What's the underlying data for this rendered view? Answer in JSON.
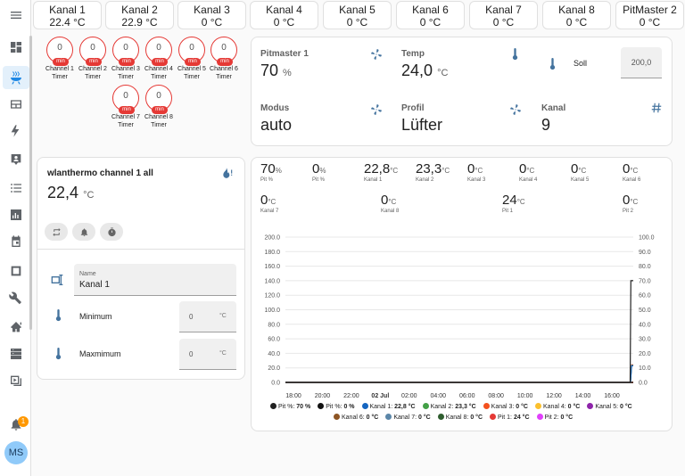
{
  "sidebar": {
    "items": [
      "menu-icon",
      "overview-icon",
      "grill-icon",
      "energy-icon",
      "lightning-icon",
      "map-icon",
      "list-icon",
      "history-icon",
      "calendar-icon",
      "media-icon",
      "developer-tools-icon",
      "hacs-icon",
      "server-icon",
      "play-icon"
    ],
    "notifications_badge": "1",
    "avatar_initials": "MS"
  },
  "top_cards": [
    {
      "name": "Kanal 1",
      "value": "22.4 °C"
    },
    {
      "name": "Kanal 2",
      "value": "22.9 °C"
    },
    {
      "name": "Kanal 3",
      "value": "0 °C"
    },
    {
      "name": "Kanal 4",
      "value": "0 °C"
    },
    {
      "name": "Kanal 5",
      "value": "0 °C"
    },
    {
      "name": "Kanal 6",
      "value": "0 °C"
    },
    {
      "name": "Kanal 7",
      "value": "0 °C"
    },
    {
      "name": "Kanal 8",
      "value": "0 °C"
    },
    {
      "name": "PitMaster 2",
      "value": "0 °C"
    }
  ],
  "timers": [
    {
      "value": "0",
      "unit": "min",
      "label1": "Channel 1",
      "label2": "Timer"
    },
    {
      "value": "0",
      "unit": "min",
      "label1": "Channel 2",
      "label2": "Timer"
    },
    {
      "value": "0",
      "unit": "min",
      "label1": "Channel 3",
      "label2": "Timer"
    },
    {
      "value": "0",
      "unit": "min",
      "label1": "Channel 4",
      "label2": "Timer"
    },
    {
      "value": "0",
      "unit": "min",
      "label1": "Channel 5",
      "label2": "Timer"
    },
    {
      "value": "0",
      "unit": "min",
      "label1": "Channel 6",
      "label2": "Timer"
    },
    {
      "value": "0",
      "unit": "min",
      "label1": "Channel 7",
      "label2": "Timer"
    },
    {
      "value": "0",
      "unit": "min",
      "label1": "Channel 8",
      "label2": "Timer"
    }
  ],
  "pitmaster": {
    "pitmaster_label": "Pitmaster 1",
    "pitmaster_value": "70",
    "pitmaster_unit": "%",
    "temp_label": "Temp",
    "temp_value": "24,0",
    "temp_unit": "°C",
    "soll_label": "Soll",
    "soll_value": "200,0",
    "modus_label": "Modus",
    "modus_value": "auto",
    "profil_label": "Profil",
    "profil_value": "Lüfter",
    "kanal_label": "Kanal",
    "kanal_value": "9"
  },
  "channel_card": {
    "title": "wlanthermo channel 1 all",
    "value": "22,4",
    "unit": "°C",
    "name_label": "Name",
    "name_value": "Kanal 1",
    "min_label": "Minimum",
    "min_value": "0",
    "min_unit": "°C",
    "max_label": "Maxmimum",
    "max_value": "0",
    "max_unit": "°C"
  },
  "stats": [
    {
      "value": "70",
      "unit": "%",
      "name": "Pit %"
    },
    {
      "value": "0",
      "unit": "%",
      "name": "Pit %"
    },
    {
      "value": "22,8",
      "unit": "°C",
      "name": "Kanal 1"
    },
    {
      "value": "23,3",
      "unit": "°C",
      "name": "Kanal 2"
    },
    {
      "value": "0",
      "unit": "°C",
      "name": "Kanal 3"
    },
    {
      "value": "0",
      "unit": "°C",
      "name": "Kanal 4"
    },
    {
      "value": "0",
      "unit": "°C",
      "name": "Kanal 5"
    },
    {
      "value": "0",
      "unit": "°C",
      "name": "Kanal 6"
    },
    {
      "value": "0",
      "unit": "°C",
      "name": "Kanal 7"
    },
    {
      "value": "0",
      "unit": "°C",
      "name": "Kanal 8"
    },
    {
      "value": "24",
      "unit": "°C",
      "name": "Pit 1"
    },
    {
      "value": "0",
      "unit": "°C",
      "name": "Pit 2"
    }
  ],
  "chart_data": {
    "type": "line",
    "x_ticks": [
      "18:00",
      "20:00",
      "22:00",
      "02 Jul",
      "02:00",
      "04:00",
      "06:00",
      "08:00",
      "10:00",
      "12:00",
      "14:00",
      "16:00"
    ],
    "x_range": [
      "17:00",
      "17:25"
    ],
    "y_left_ticks": [
      "200.0",
      "180.0",
      "160.0",
      "140.0",
      "120.0",
      "100.0",
      "80.0",
      "60.0",
      "40.0",
      "20.0",
      "0.0"
    ],
    "y_right_ticks": [
      "100.0",
      "90.0",
      "80.0",
      "70.0",
      "60.0",
      "50.0",
      "40.0",
      "30.0",
      "20.0",
      "10.0",
      "0.0"
    ],
    "ylim_left": [
      0,
      200
    ],
    "ylim_right": [
      0,
      100
    ],
    "grid": true,
    "series": [
      {
        "name": "Pit %",
        "value": "70 %",
        "color": "#212121",
        "axis": "right",
        "points": [
          [
            0,
            0
          ],
          [
            0.991,
            0
          ],
          [
            0.993,
            70
          ],
          [
            1,
            70
          ]
        ]
      },
      {
        "name": "Pit %",
        "value": "0 %",
        "color": "#111111",
        "axis": "right",
        "points": [
          [
            0,
            0
          ],
          [
            1,
            0
          ]
        ]
      },
      {
        "name": "Kanal 1",
        "value": "22,8 °C",
        "color": "#1565c0",
        "axis": "left",
        "points": [
          [
            0,
            0
          ],
          [
            0.992,
            0
          ],
          [
            0.995,
            22.8
          ],
          [
            1,
            22.8
          ]
        ]
      },
      {
        "name": "Kanal 2",
        "value": "23,3 °C",
        "color": "#43a047",
        "axis": "left",
        "points": [
          [
            0,
            0
          ],
          [
            0.992,
            0
          ],
          [
            0.995,
            23.3
          ],
          [
            1,
            23.3
          ]
        ]
      },
      {
        "name": "Kanal 3",
        "value": "0 °C",
        "color": "#f4511e",
        "axis": "left",
        "points": [
          [
            0,
            0
          ],
          [
            1,
            0
          ]
        ]
      },
      {
        "name": "Kanal 4",
        "value": "0 °C",
        "color": "#fbc02d",
        "axis": "left",
        "points": [
          [
            0,
            0
          ],
          [
            1,
            0
          ]
        ]
      },
      {
        "name": "Kanal 5",
        "value": "0 °C",
        "color": "#8e24aa",
        "axis": "left",
        "points": [
          [
            0,
            0
          ],
          [
            1,
            0
          ]
        ]
      },
      {
        "name": "Kanal 6",
        "value": "0 °C",
        "color": "#8d5524",
        "axis": "left",
        "points": [
          [
            0,
            0
          ],
          [
            1,
            0
          ]
        ]
      },
      {
        "name": "Kanal 7",
        "value": "0 °C",
        "color": "#5b86a8",
        "axis": "left",
        "points": [
          [
            0,
            0
          ],
          [
            1,
            0
          ]
        ]
      },
      {
        "name": "Kanal 8",
        "value": "0 °C",
        "color": "#2e5d2e",
        "axis": "left",
        "points": [
          [
            0,
            0
          ],
          [
            1,
            0
          ]
        ]
      },
      {
        "name": "Pit 1",
        "value": "24 °C",
        "color": "#e53935",
        "axis": "left",
        "points": [
          [
            0,
            0
          ],
          [
            0.992,
            0
          ],
          [
            0.995,
            24
          ],
          [
            1,
            24
          ]
        ]
      },
      {
        "name": "Pit 2",
        "value": "0 °C",
        "color": "#e040fb",
        "axis": "left",
        "points": [
          [
            0,
            0
          ],
          [
            1,
            0
          ]
        ]
      }
    ]
  }
}
